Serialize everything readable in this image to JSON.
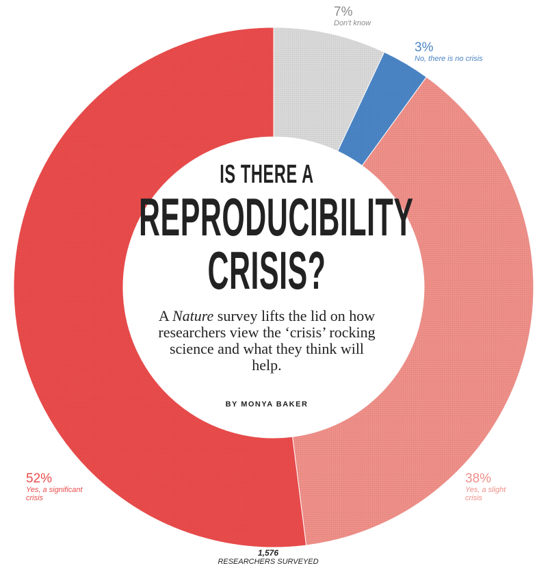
{
  "chart_data": {
    "type": "pie",
    "title": "IS THERE A REPRODUCIBILITY CRISIS?",
    "slices": [
      {
        "label": "Yes, a significant crisis",
        "value": 52,
        "pct_text": "52%",
        "color": "#e94b4b"
      },
      {
        "label": "Yes, a slight crisis",
        "value": 38,
        "pct_text": "38%",
        "color": "#ee8f88"
      },
      {
        "label": "Don't know",
        "value": 7,
        "pct_text": "7%",
        "color": "#d8d8d8"
      },
      {
        "label": "No, there is no crisis",
        "value": 3,
        "pct_text": "3%",
        "color": "#4a84c4"
      }
    ],
    "total": {
      "number": "1,576",
      "caption": "RESEARCHERS SURVEYED"
    }
  },
  "headline": {
    "line1": "IS THERE A",
    "line2": "REPRODUCIBILITY",
    "line3": "CRISIS?"
  },
  "deck": {
    "pre": "A ",
    "italic": "Nature",
    "post": " survey lifts the lid on how researchers view the ‘crisis’ rocking science and what they think will help."
  },
  "byline": "BY MONYA BAKER",
  "label_colors": {
    "significant": "#e94b4b",
    "slight": "#ee8f88",
    "dontknow": "#8a8a8a",
    "no": "#4a84c4"
  }
}
